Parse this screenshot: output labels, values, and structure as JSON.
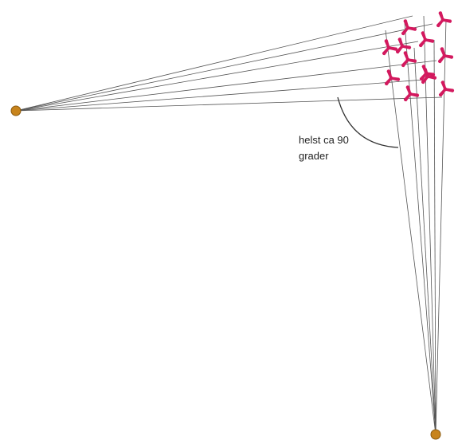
{
  "annotation": {
    "line1": "helst ca 90",
    "line2": "grader"
  },
  "colors": {
    "observer_point": "#c8841c",
    "observer_outline": "#8a5a10",
    "turbine": "#d3195e",
    "sight_line": "#555555",
    "angle_arc": "#333333"
  },
  "observers": [
    {
      "name": "observer-point-left"
    },
    {
      "name": "observer-point-bottom"
    }
  ],
  "turbine_count": 12,
  "icons": {
    "observer": "dot-icon",
    "turbine": "wind-turbine-icon"
  }
}
